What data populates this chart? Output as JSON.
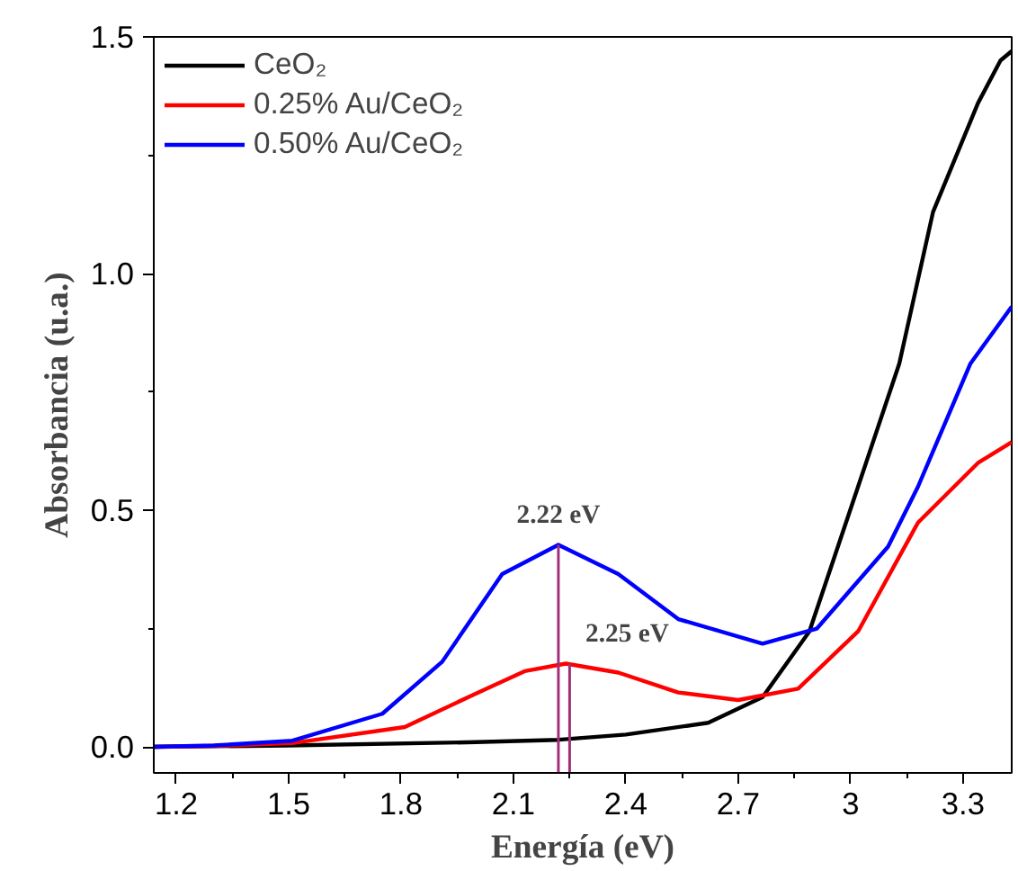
{
  "chart_data": {
    "type": "line",
    "xlabel": "Energía (eV)",
    "ylabel": "Absorbancia (u.a.)",
    "xlim": [
      1.14,
      3.43
    ],
    "ylim": [
      -0.055,
      1.5
    ],
    "xticks": [
      1.2,
      1.5,
      1.8,
      2.1,
      2.4,
      2.7,
      3.0,
      3.3
    ],
    "yticks": [
      {
        "value": 0,
        "label": "0.0"
      },
      {
        "value": 0.5,
        "label": "0.5"
      },
      {
        "value": 1,
        "label": "1.0"
      },
      {
        "value": 1.5,
        "label": "1.5"
      }
    ],
    "grid": false,
    "legend": "top left",
    "line_style": "solid",
    "marker": "none",
    "series": [
      {
        "name": "CeO₂",
        "color": "#000000",
        "x": [
          1.14,
          1.5,
          2.0,
          2.22,
          2.4,
          2.62,
          2.765,
          2.89,
          3.02,
          3.13,
          3.22,
          3.34,
          3.4,
          3.43
        ],
        "values": [
          0,
          0.003,
          0.01,
          0.015,
          0.026,
          0.051,
          0.105,
          0.244,
          0.55,
          0.81,
          1.13,
          1.36,
          1.45,
          1.47
        ]
      },
      {
        "name": "0.25% Au/CeO₂",
        "color": "#ff0000",
        "x": [
          1.14,
          1.3,
          1.51,
          1.81,
          1.99,
          2.13,
          2.24,
          2.38,
          2.54,
          2.7,
          2.86,
          3.02,
          3.18,
          3.34,
          3.43
        ],
        "values": [
          0,
          0.002,
          0.008,
          0.042,
          0.109,
          0.16,
          0.176,
          0.157,
          0.115,
          0.099,
          0.123,
          0.244,
          0.474,
          0.6,
          0.644
        ]
      },
      {
        "name": "0.50% Au/CeO₂",
        "color": "#0000ff",
        "x": [
          1.14,
          1.3,
          1.51,
          1.75,
          1.91,
          2.07,
          2.22,
          2.38,
          2.54,
          2.765,
          2.91,
          3.1,
          3.18,
          3.32,
          3.43
        ],
        "values": [
          0,
          0.003,
          0.013,
          0.07,
          0.18,
          0.365,
          0.427,
          0.365,
          0.27,
          0.218,
          0.25,
          0.423,
          0.55,
          0.81,
          0.93
        ]
      }
    ],
    "annotations": [
      {
        "text": "2.22 eV",
        "x": 2.22,
        "y": 0.427
      },
      {
        "text": "2.25 eV",
        "x": 2.25,
        "y": 0.176
      }
    ]
  }
}
